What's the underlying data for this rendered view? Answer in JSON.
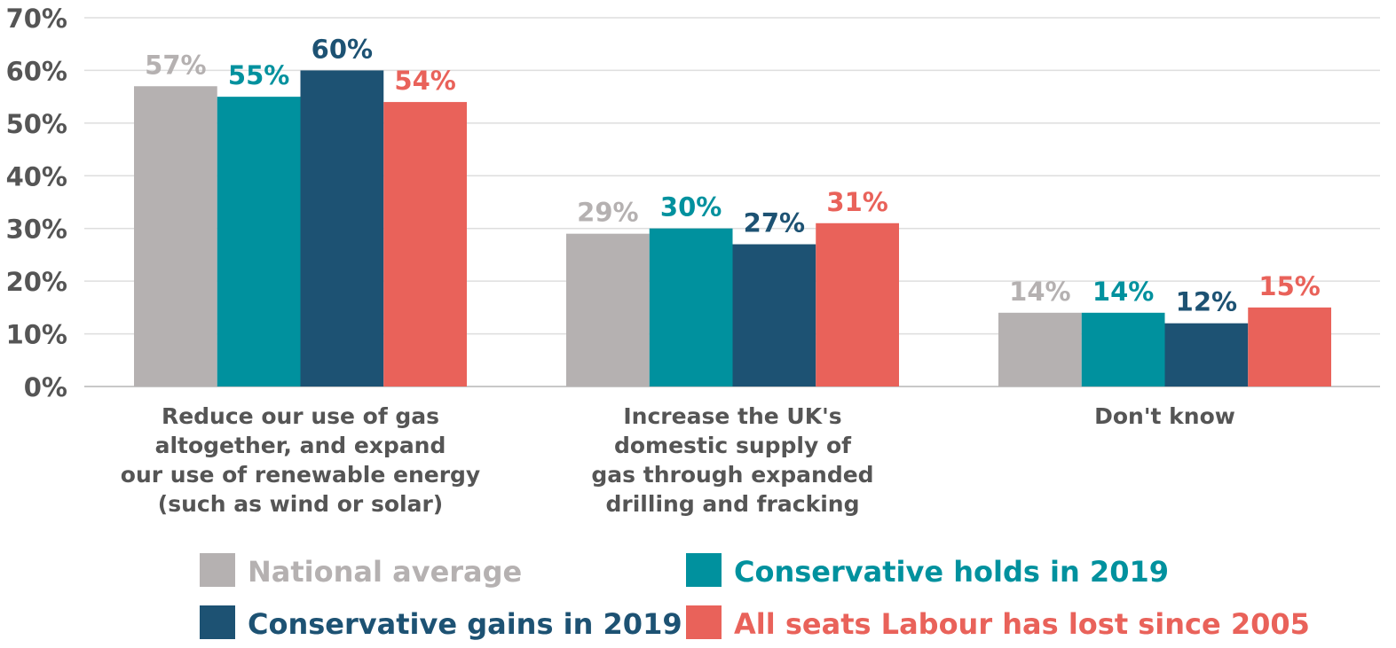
{
  "chart_data": {
    "type": "bar",
    "title": "",
    "xlabel": "",
    "ylabel": "",
    "ylim": [
      0,
      70
    ],
    "yticks": [
      "0%",
      "10%",
      "20%",
      "30%",
      "40%",
      "50%",
      "60%",
      "70%"
    ],
    "grid": true,
    "legend_position": "bottom",
    "categories": [
      [
        "Reduce our use of gas",
        "altogether, and expand",
        "our use of renewable energy",
        "(such as wind or solar)"
      ],
      [
        "Increase the UK's",
        "domestic supply of",
        "gas through expanded",
        "drilling and fracking"
      ],
      [
        "Don't know"
      ]
    ],
    "series": [
      {
        "name": "National average",
        "color": "#b5b1b1",
        "values": [
          57,
          29,
          14
        ],
        "labels": [
          "57%",
          "29%",
          "14%"
        ]
      },
      {
        "name": "Conservative holds in 2019",
        "color": "#00919e",
        "values": [
          55,
          30,
          14
        ],
        "labels": [
          "55%",
          "30%",
          "14%"
        ]
      },
      {
        "name": "Conservative gains in 2019",
        "color": "#1d5273",
        "values": [
          60,
          27,
          12
        ],
        "labels": [
          "60%",
          "27%",
          "12%"
        ]
      },
      {
        "name": "All seats Labour has lost since 2005",
        "color": "#e9625a",
        "values": [
          54,
          31,
          15
        ],
        "labels": [
          "54%",
          "31%",
          "15%"
        ]
      }
    ]
  }
}
